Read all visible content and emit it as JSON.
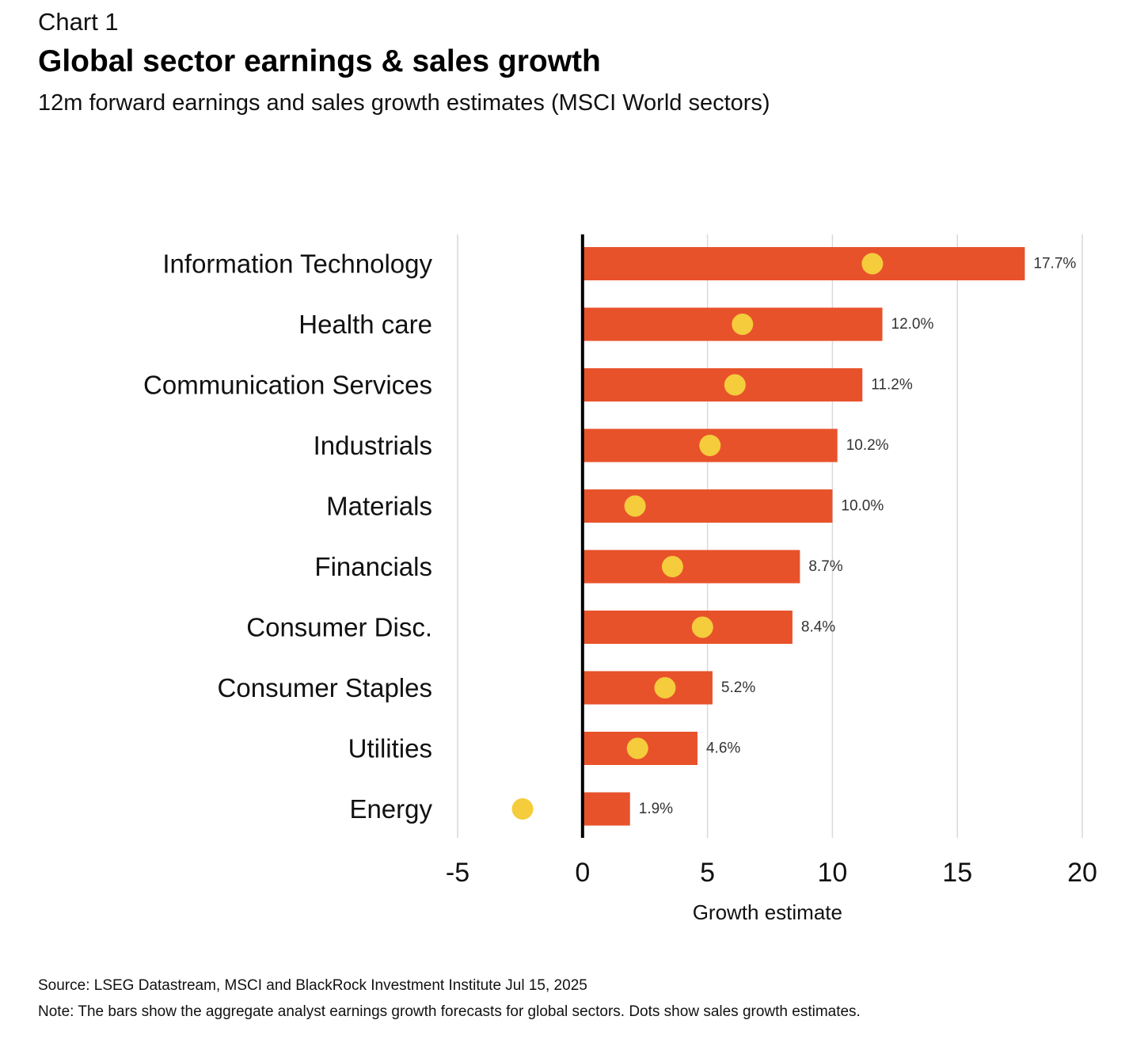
{
  "header": {
    "eyebrow": "Chart 1",
    "title": "Global sector earnings & sales growth",
    "subtitle": "12m forward earnings and sales growth estimates (MSCI World sectors)"
  },
  "footer": {
    "source": "Source: LSEG Datastream, MSCI and BlackRock Investment Institute Jul 15, 2025",
    "note": "Note: The bars show the aggregate analyst earnings growth forecasts for global sectors. Dots show sales growth estimates."
  },
  "colors": {
    "bar": "#E8522B",
    "dot": "#F5CC3C",
    "gridline": "#D9D9D9",
    "zero_line": "#000000",
    "text": "#111111"
  },
  "chart_data": {
    "type": "bar",
    "orientation": "horizontal",
    "categories": [
      "Information Technology",
      "Health care",
      "Communication Services",
      "Industrials",
      "Materials",
      "Financials",
      "Consumer Disc.",
      "Consumer Staples",
      "Utilities",
      "Energy"
    ],
    "series": [
      {
        "kind": "bar",
        "values": [
          17.7,
          12.0,
          11.2,
          10.2,
          10.0,
          8.7,
          8.4,
          5.2,
          4.6,
          1.9
        ],
        "data_labels": [
          "17.7%",
          "12.0%",
          "11.2%",
          "10.2%",
          "10.0%",
          "8.7%",
          "8.4%",
          "5.2%",
          "4.6%",
          "1.9%"
        ]
      },
      {
        "kind": "dot",
        "values": [
          11.6,
          6.4,
          6.1,
          5.1,
          2.1,
          3.6,
          4.8,
          3.3,
          2.2,
          -2.4
        ]
      }
    ],
    "xlabel": "Growth estimate",
    "ylabel": "",
    "xlim": [
      -5,
      20
    ],
    "xticks": [
      -5,
      0,
      5,
      10,
      15,
      20
    ],
    "xtick_labels": [
      "-5",
      "0",
      "5",
      "10",
      "15",
      "20"
    ],
    "grid": "vertical",
    "legend": "none"
  }
}
